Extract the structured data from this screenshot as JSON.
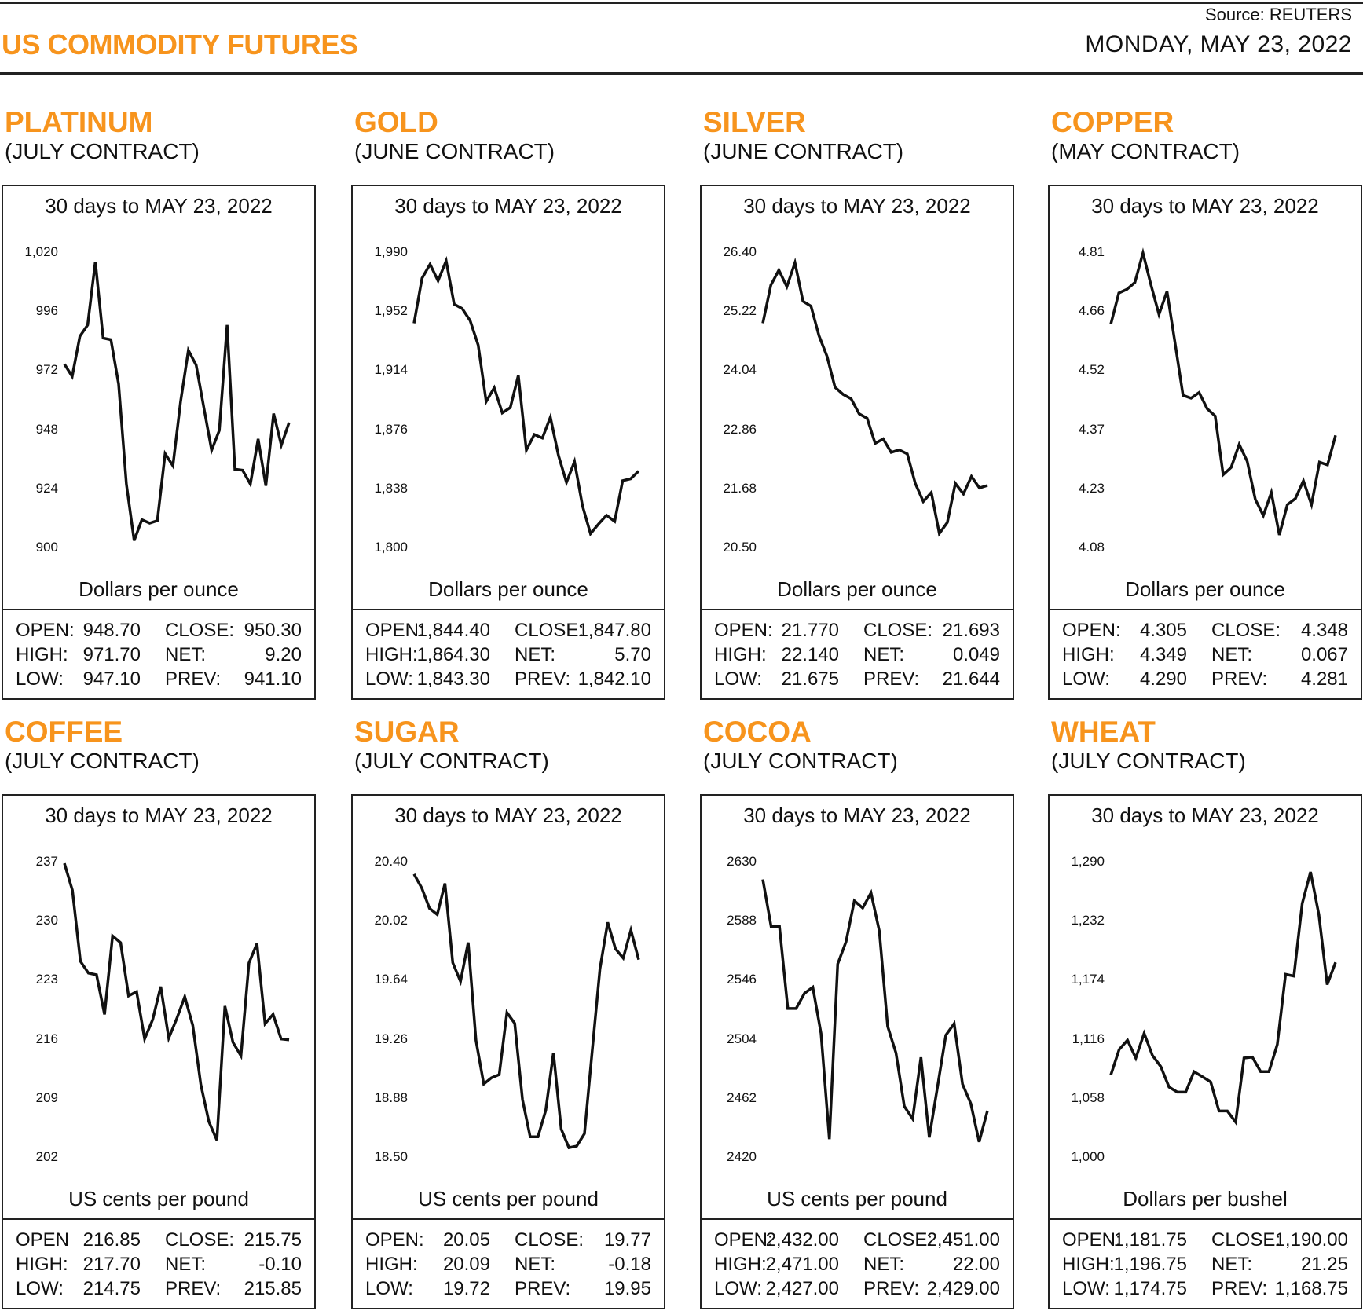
{
  "header": {
    "title": "US COMMODITY FUTURES",
    "source": "Source: REUTERS",
    "date": "MONDAY, MAY 23, 2022"
  },
  "colors": {
    "accent": "#f7941d",
    "line": "#111111"
  },
  "chart_data": [
    {
      "type": "line",
      "name": "PLATINUM",
      "contract": "(JULY CONTRACT)",
      "title": "30 days to MAY 23, 2022",
      "ylabel": "Dollars per ounce",
      "yticks": [
        "1,020",
        "996",
        "972",
        "948",
        "924",
        "900"
      ],
      "ylim": [
        900,
        1020
      ],
      "values": [
        974.5,
        969.5,
        985.8,
        990.4,
        1016.1,
        985.1,
        984.4,
        966.4,
        925.8,
        902.8,
        911.3,
        909.9,
        910.9,
        938.1,
        933.2,
        959.3,
        980.1,
        974.1,
        956.8,
        939.5,
        947.6,
        990.4,
        931.8,
        931.4,
        925.8,
        944.1,
        925.1,
        954.4,
        941.6,
        950.8
      ],
      "stats": [
        [
          "OPEN:",
          "948.70",
          "CLOSE:",
          "950.30"
        ],
        [
          "HIGH:",
          "971.70",
          "NET:",
          "9.20"
        ],
        [
          "LOW:",
          "947.10",
          "PREV:",
          "941.10"
        ]
      ]
    },
    {
      "type": "line",
      "name": "GOLD",
      "contract": "(JUNE CONTRACT)",
      "title": "30 days to MAY 23, 2022",
      "ylabel": "Dollars per ounce",
      "yticks": [
        "1,990",
        "1,952",
        "1,914",
        "1,876",
        "1,838",
        "1,800"
      ],
      "ylim": [
        1800,
        1990
      ],
      "values": [
        1944.2,
        1973.2,
        1982.2,
        1971.6,
        1984.4,
        1956.5,
        1953.7,
        1945.9,
        1930.2,
        1893.9,
        1902.8,
        1886.6,
        1890.0,
        1910.7,
        1862.6,
        1872.7,
        1870.4,
        1883.8,
        1859.2,
        1841.9,
        1855.3,
        1826.8,
        1808.9,
        1815.1,
        1820.7,
        1816.8,
        1843.0,
        1844.2,
        1849.2
      ],
      "stats": [
        [
          "OPEN:",
          "1,844.40",
          "CLOSE:",
          "1,847.80"
        ],
        [
          "HIGH:",
          "1,864.30",
          "NET:",
          "5.70"
        ],
        [
          "LOW:",
          "1,843.30",
          "PREV:",
          "1,842.10"
        ]
      ]
    },
    {
      "type": "line",
      "name": "SILVER",
      "contract": "(JUNE CONTRACT)",
      "title": "30 days to MAY 23, 2022",
      "ylabel": "Dollars per ounce",
      "yticks": [
        "26.40",
        "25.22",
        "24.04",
        "22.86",
        "21.68",
        "20.50"
      ],
      "ylim": [
        20.5,
        26.4
      ],
      "values": [
        24.98,
        25.74,
        26.04,
        25.71,
        26.19,
        25.42,
        25.32,
        24.73,
        24.32,
        23.7,
        23.56,
        23.47,
        23.17,
        23.08,
        22.58,
        22.67,
        22.4,
        22.45,
        22.37,
        21.78,
        21.42,
        21.6,
        20.78,
        21.0,
        21.78,
        21.57,
        21.92,
        21.69,
        21.74
      ],
      "stats": [
        [
          "OPEN:",
          "21.770",
          "CLOSE:",
          "21.693"
        ],
        [
          "HIGH:",
          "22.140",
          "NET:",
          "0.049"
        ],
        [
          "LOW:",
          "21.675",
          "PREV:",
          "21.644"
        ]
      ]
    },
    {
      "type": "line",
      "name": "COPPER",
      "contract": "(MAY CONTRACT)",
      "title": "30 days to MAY 23, 2022",
      "ylabel": "Dollars per ounce",
      "yticks": [
        "4.81",
        "4.66",
        "4.52",
        "4.37",
        "4.23",
        "4.08"
      ],
      "ylim": [
        4.08,
        4.81
      ],
      "values": [
        4.632,
        4.709,
        4.718,
        4.735,
        4.808,
        4.729,
        4.656,
        4.713,
        4.586,
        4.456,
        4.449,
        4.463,
        4.423,
        4.405,
        4.26,
        4.278,
        4.335,
        4.293,
        4.199,
        4.159,
        4.216,
        4.111,
        4.186,
        4.201,
        4.245,
        4.186,
        4.291,
        4.284,
        4.357
      ],
      "stats": [
        [
          "OPEN:",
          "4.305",
          "CLOSE:",
          "4.348"
        ],
        [
          "HIGH:",
          "4.349",
          "NET:",
          "0.067"
        ],
        [
          "LOW:",
          "4.290",
          "PREV:",
          "4.281"
        ]
      ]
    },
    {
      "type": "line",
      "name": "COFFEE",
      "contract": "(JULY CONTRACT)",
      "title": "30 days to MAY 23, 2022",
      "ylabel": "US cents per pound",
      "yticks": [
        "237",
        "230",
        "223",
        "216",
        "209",
        "202"
      ],
      "ylim": [
        202,
        237
      ],
      "values": [
        236.8,
        233.6,
        225.2,
        223.8,
        223.6,
        218.9,
        228.2,
        227.4,
        221.1,
        221.6,
        216.0,
        218.3,
        222.2,
        216.1,
        218.4,
        221.0,
        217.6,
        210.6,
        206.2,
        204.0,
        219.9,
        215.6,
        214.0,
        225.0,
        227.3,
        217.8,
        218.9,
        216.0,
        215.9
      ],
      "stats": [
        [
          "OPEN",
          "216.85",
          "CLOSE:",
          "215.75"
        ],
        [
          "HIGH:",
          "217.70",
          "NET:",
          "-0.10"
        ],
        [
          "LOW:",
          "214.75",
          "PREV:",
          "215.85"
        ]
      ]
    },
    {
      "type": "line",
      "name": "SUGAR",
      "contract": "(JULY CONTRACT)",
      "title": "30 days to MAY 23, 2022",
      "ylabel": "US cents per pound",
      "yticks": [
        "20.40",
        "20.02",
        "19.64",
        "19.26",
        "18.88",
        "18.50"
      ],
      "ylim": [
        18.5,
        20.4
      ],
      "values": [
        20.32,
        20.23,
        20.1,
        20.06,
        20.26,
        19.75,
        19.63,
        19.88,
        19.25,
        18.97,
        19.01,
        19.03,
        19.43,
        19.36,
        18.87,
        18.63,
        18.63,
        18.8,
        19.17,
        18.68,
        18.56,
        18.57,
        18.65,
        19.18,
        19.71,
        20.01,
        19.84,
        19.78,
        19.96,
        19.77
      ],
      "stats": [
        [
          "OPEN:",
          "20.05",
          "CLOSE:",
          "19.77"
        ],
        [
          "HIGH:",
          "20.09",
          "NET:",
          "-0.18"
        ],
        [
          "LOW:",
          "19.72",
          "PREV:",
          "19.95"
        ]
      ]
    },
    {
      "type": "line",
      "name": "COCOA",
      "contract": "(JULY CONTRACT)",
      "title": "30 days to MAY 23, 2022",
      "ylabel": "US cents per pound",
      "yticks": [
        "2630",
        "2588",
        "2546",
        "2504",
        "2462",
        "2420"
      ],
      "ylim": [
        2420,
        2630
      ],
      "values": [
        2617.4,
        2583.8,
        2583.8,
        2525.6,
        2525.6,
        2536.4,
        2540.8,
        2507.9,
        2432.7,
        2557.3,
        2573.1,
        2602.2,
        2597.1,
        2607.9,
        2580.7,
        2513.0,
        2494.0,
        2456.1,
        2447.2,
        2490.9,
        2433.9,
        2470.0,
        2506.7,
        2514.9,
        2471.9,
        2458.0,
        2430.8,
        2452.9
      ],
      "stats": [
        [
          "OPEN:",
          "2,432.00",
          "CLOSE:",
          "2,451.00"
        ],
        [
          "HIGH:",
          "2,471.00",
          "NET:",
          "22.00"
        ],
        [
          "LOW:",
          "2,427.00",
          "PREV:",
          "2,429.00"
        ]
      ]
    },
    {
      "type": "line",
      "name": "WHEAT",
      "contract": "(JULY CONTRACT)",
      "title": "30 days to MAY 23, 2022",
      "ylabel": "Dollars per bushel",
      "yticks": [
        "1,290",
        "1,232",
        "1,174",
        "1,116",
        "1,058",
        "1,000"
      ],
      "ylim": [
        1000,
        1290
      ],
      "values": [
        1080.5,
        1105.6,
        1114.8,
        1097.2,
        1121.5,
        1099.7,
        1088.8,
        1068.7,
        1063.7,
        1063.7,
        1083.8,
        1078.8,
        1073.7,
        1045.2,
        1045.2,
        1034.3,
        1097.2,
        1098.1,
        1083.8,
        1083.8,
        1110.6,
        1179.4,
        1177.7,
        1248.9,
        1279.9,
        1238.0,
        1169.3,
        1191.1
      ],
      "stats": [
        [
          "OPEN:",
          "1,181.75",
          "CLOSE:",
          "1,190.00"
        ],
        [
          "HIGH:",
          "1,196.75",
          "NET:",
          "21.25"
        ],
        [
          "LOW:",
          "1,174.75",
          "PREV:",
          "1,168.75"
        ]
      ]
    }
  ]
}
